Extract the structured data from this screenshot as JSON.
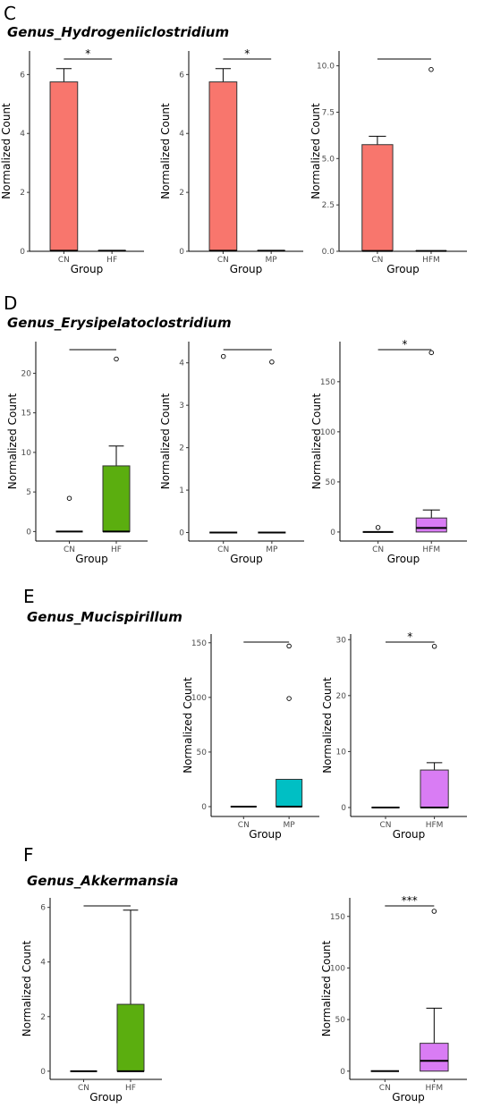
{
  "chart_data": [
    {
      "type": "box",
      "section": "C",
      "title": "Genus_Hydrogeniiclostridium",
      "xlabel": "Group",
      "ylabel": "Normalized Count",
      "ylim": [
        0,
        6.8
      ],
      "yticks": [
        0,
        2,
        4,
        6
      ],
      "signif": "*",
      "categories": [
        "CN",
        "HF"
      ],
      "colors": [
        "#F8766D",
        "#ffffff"
      ],
      "groups": [
        {
          "q1": 0,
          "median": 0.02,
          "q3": 5.75,
          "whisker_low": 0,
          "whisker_high": 6.2,
          "outliers": []
        },
        {
          "q1": 0,
          "median": 0.02,
          "q3": 0.02,
          "whisker_low": 0,
          "whisker_high": 0.02,
          "outliers": []
        }
      ]
    },
    {
      "type": "box",
      "section": "C",
      "title": "",
      "xlabel": "Group",
      "ylabel": "Normalized Count",
      "ylim": [
        0,
        6.8
      ],
      "yticks": [
        0,
        2,
        4,
        6
      ],
      "signif": "*",
      "categories": [
        "CN",
        "MP"
      ],
      "colors": [
        "#F8766D",
        "#ffffff"
      ],
      "groups": [
        {
          "q1": 0,
          "median": 0.02,
          "q3": 5.75,
          "whisker_low": 0,
          "whisker_high": 6.2,
          "outliers": []
        },
        {
          "q1": 0,
          "median": 0.02,
          "q3": 0.02,
          "whisker_low": 0,
          "whisker_high": 0.02,
          "outliers": []
        }
      ]
    },
    {
      "type": "box",
      "section": "C",
      "title": "",
      "xlabel": "Group",
      "ylabel": "Normalized Count",
      "ylim": [
        0,
        10.8
      ],
      "yticks": [
        0,
        2.5,
        5,
        7.5,
        10
      ],
      "ytick_labels": [
        "0.0",
        "2.5",
        "5.0",
        "7.5",
        "10.0"
      ],
      "signif": "",
      "categories": [
        "CN",
        "HFM"
      ],
      "colors": [
        "#F8766D",
        "#ffffff"
      ],
      "groups": [
        {
          "q1": 0,
          "median": 0.02,
          "q3": 5.75,
          "whisker_low": 0,
          "whisker_high": 6.2,
          "outliers": []
        },
        {
          "q1": 0,
          "median": 0.02,
          "q3": 0.02,
          "whisker_low": 0,
          "whisker_high": 0.02,
          "outliers": [
            9.8
          ]
        }
      ]
    },
    {
      "type": "box",
      "section": "D",
      "title": "Genus_Erysipelatoclostridium",
      "xlabel": "Group",
      "ylabel": "Normalized Count",
      "ylim": [
        -1.2,
        24
      ],
      "yticks": [
        0,
        5,
        10,
        15,
        20
      ],
      "signif": "",
      "categories": [
        "CN",
        "HF"
      ],
      "colors": [
        "#ffffff",
        "#5BAE0F"
      ],
      "groups": [
        {
          "q1": 0,
          "median": 0,
          "q3": 0,
          "whisker_low": 0,
          "whisker_high": 0,
          "outliers": [
            4.2
          ]
        },
        {
          "q1": 0,
          "median": 0,
          "q3": 8.3,
          "whisker_low": 0,
          "whisker_high": 10.8,
          "outliers": [
            21.8
          ]
        }
      ]
    },
    {
      "type": "box",
      "section": "D",
      "title": "",
      "xlabel": "Group",
      "ylabel": "Normalized Count",
      "ylim": [
        -0.2,
        4.5
      ],
      "yticks": [
        0,
        1,
        2,
        3,
        4
      ],
      "signif": "",
      "categories": [
        "CN",
        "MP"
      ],
      "colors": [
        "#ffffff",
        "#ffffff"
      ],
      "groups": [
        {
          "q1": 0,
          "median": 0,
          "q3": 0,
          "whisker_low": 0,
          "whisker_high": 0,
          "outliers": [
            4.15
          ]
        },
        {
          "q1": 0,
          "median": 0,
          "q3": 0,
          "whisker_low": 0,
          "whisker_high": 0,
          "outliers": [
            4.02
          ]
        }
      ]
    },
    {
      "type": "box",
      "section": "D",
      "title": "",
      "xlabel": "Group",
      "ylabel": "Normalized Count",
      "ylim": [
        -9,
        190
      ],
      "yticks": [
        0,
        50,
        100,
        150
      ],
      "signif": "*",
      "categories": [
        "CN",
        "HFM"
      ],
      "colors": [
        "#ffffff",
        "#D97CF4"
      ],
      "groups": [
        {
          "q1": 0,
          "median": 0,
          "q3": 0,
          "whisker_low": 0,
          "whisker_high": 0,
          "outliers": [
            4.5
          ]
        },
        {
          "q1": 0,
          "median": 4,
          "q3": 14,
          "whisker_low": 0,
          "whisker_high": 22,
          "outliers": [
            179
          ]
        }
      ]
    },
    {
      "type": "box",
      "section": "E",
      "title": "Genus_Mucispirillum",
      "xlabel": "Group",
      "ylabel": "Normalized Count",
      "ylim": [
        -9,
        158
      ],
      "yticks": [
        0,
        50,
        100,
        150
      ],
      "signif": "",
      "categories": [
        "CN",
        "MP"
      ],
      "colors": [
        "#ffffff",
        "#00BFC4"
      ],
      "groups": [
        {
          "q1": 0,
          "median": 0,
          "q3": 0,
          "whisker_low": 0,
          "whisker_high": 0,
          "outliers": []
        },
        {
          "q1": 0,
          "median": 0,
          "q3": 25,
          "whisker_low": 0,
          "whisker_high": 25,
          "outliers": [
            99,
            147
          ]
        }
      ]
    },
    {
      "type": "box",
      "section": "E",
      "title": "",
      "xlabel": "Group",
      "ylabel": "Normalized Count",
      "ylim": [
        -1.6,
        31
      ],
      "yticks": [
        0,
        10,
        20,
        30
      ],
      "signif": "*",
      "categories": [
        "CN",
        "HFM"
      ],
      "colors": [
        "#ffffff",
        "#D97CF4"
      ],
      "groups": [
        {
          "q1": 0,
          "median": 0,
          "q3": 0,
          "whisker_low": 0,
          "whisker_high": 0,
          "outliers": []
        },
        {
          "q1": 0,
          "median": 0,
          "q3": 6.7,
          "whisker_low": 0,
          "whisker_high": 8,
          "outliers": [
            28.8
          ]
        }
      ]
    },
    {
      "type": "box",
      "section": "F",
      "title": "Genus_Akkermansia",
      "xlabel": "Group",
      "ylabel": "Normalized Count",
      "ylim": [
        -0.3,
        6.35
      ],
      "yticks": [
        0,
        2,
        4,
        6
      ],
      "signif": "",
      "categories": [
        "CN",
        "HF"
      ],
      "colors": [
        "#ffffff",
        "#5BAE0F"
      ],
      "groups": [
        {
          "q1": 0,
          "median": 0,
          "q3": 0,
          "whisker_low": 0,
          "whisker_high": 0,
          "outliers": []
        },
        {
          "q1": 0,
          "median": 0,
          "q3": 2.45,
          "whisker_low": 0,
          "whisker_high": 5.9,
          "outliers": []
        }
      ]
    },
    {
      "type": "box",
      "section": "F",
      "title": "",
      "xlabel": "Group",
      "ylabel": "Normalized Count",
      "ylim": [
        -8,
        168
      ],
      "yticks": [
        0,
        50,
        100,
        150
      ],
      "signif": "***",
      "categories": [
        "CN",
        "HFM"
      ],
      "colors": [
        "#ffffff",
        "#D97CF4"
      ],
      "groups": [
        {
          "q1": 0,
          "median": 0,
          "q3": 0,
          "whisker_low": 0,
          "whisker_high": 0,
          "outliers": []
        },
        {
          "q1": 0,
          "median": 10,
          "q3": 27,
          "whisker_low": 0,
          "whisker_high": 61,
          "outliers": [
            155
          ]
        }
      ]
    }
  ],
  "sections": [
    {
      "letter": "C",
      "genus": "Genus_Hydrogeniiclostridium"
    },
    {
      "letter": "D",
      "genus": "Genus_Erysipelatoclostridium"
    },
    {
      "letter": "E",
      "genus": "Genus_Mucispirillum"
    },
    {
      "letter": "F",
      "genus": "Genus_Akkermansia"
    }
  ]
}
